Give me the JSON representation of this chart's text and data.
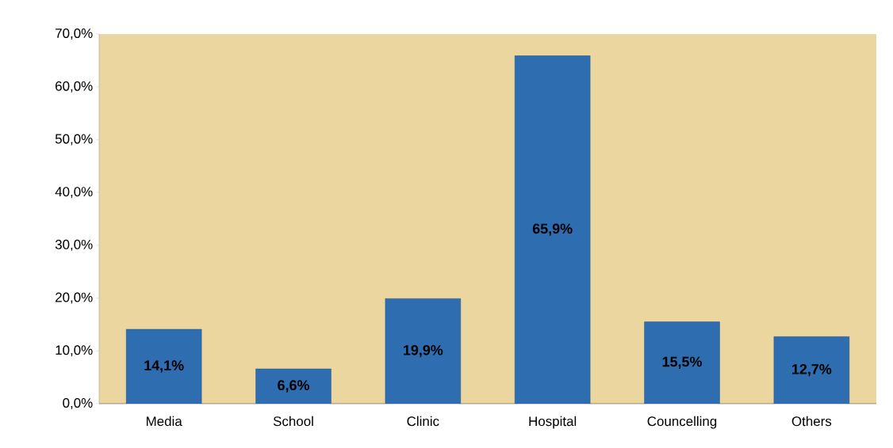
{
  "chart_data": {
    "type": "bar",
    "categories": [
      "Media",
      "School",
      "Clinic",
      "Hospital",
      "Councelling",
      "Others"
    ],
    "values": [
      14.1,
      6.6,
      19.9,
      65.9,
      15.5,
      12.7
    ],
    "value_labels": [
      "14,1%",
      "6,6%",
      "19,9%",
      "65,9%",
      "15,5%",
      "12,7%"
    ],
    "color": "#2e6db0",
    "ylim": [
      0,
      70
    ],
    "yticks": [
      {
        "value": 0,
        "label": "0,0%"
      },
      {
        "value": 10,
        "label": "10,0%"
      },
      {
        "value": 20,
        "label": "20,0%"
      },
      {
        "value": 30,
        "label": "30,0%"
      },
      {
        "value": 40,
        "label": "40,0%"
      },
      {
        "value": 50,
        "label": "50,0%"
      },
      {
        "value": 60,
        "label": "60,0%"
      },
      {
        "value": 70,
        "label": "70,0%"
      }
    ],
    "grid": false
  }
}
